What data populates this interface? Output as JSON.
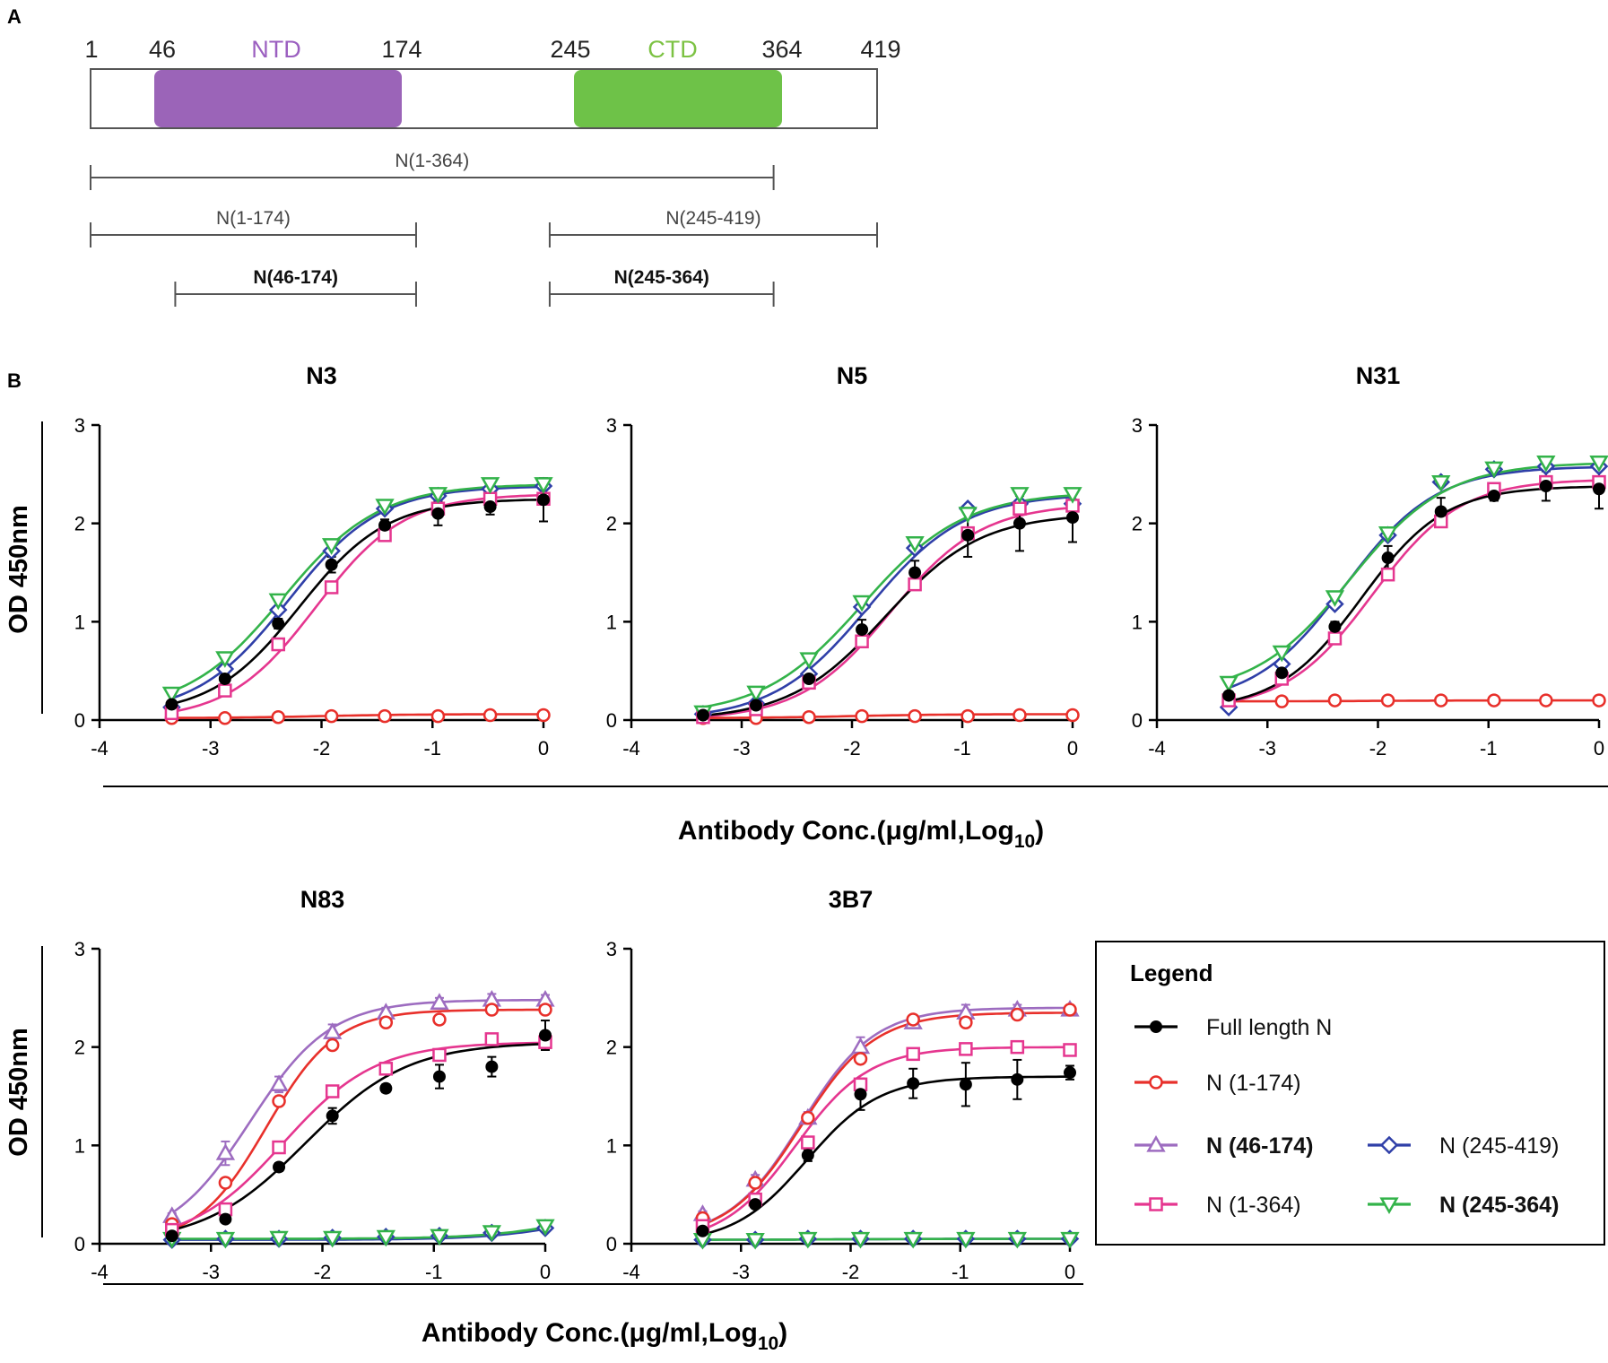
{
  "panel_labels": {
    "a": "A",
    "b": "B"
  },
  "domain_map": {
    "positions": [
      "1",
      "46",
      "174",
      "245",
      "364",
      "419"
    ],
    "ntd_label": "NTD",
    "ctd_label": "CTD",
    "colors": {
      "ntd": "#9b64b8",
      "ctd": "#6ec248",
      "ntd_text": "#9b5fc0",
      "ctd_text": "#7cc243"
    },
    "constructs": [
      {
        "label": "N(1-364)",
        "start": 1,
        "end": 364,
        "bold": false
      },
      {
        "label": "N(1-174)",
        "start": 1,
        "end": 174,
        "bold": false
      },
      {
        "label": "N(245-419)",
        "start": 245,
        "end": 419,
        "bold": false
      },
      {
        "label": "N(46-174)",
        "start": 46,
        "end": 174,
        "bold": true
      },
      {
        "label": "N(245-364)",
        "start": 245,
        "end": 364,
        "bold": true
      }
    ]
  },
  "axis_text": {
    "ylabel": "OD 450nm",
    "xlabel_main": "Antibody Conc.(μg/ml,Log",
    "xlabel_sub": "10",
    "xlabel_close": ")",
    "xticks": [
      "-4",
      "-3",
      "-2",
      "-1",
      "0"
    ],
    "yticks": [
      "0",
      "1",
      "2",
      "3"
    ]
  },
  "legend": {
    "title": "Legend",
    "entries": [
      {
        "key": "full",
        "label": "Full length N",
        "bold": false
      },
      {
        "key": "n1_174",
        "label": "N (1-174)",
        "bold": false
      },
      {
        "key": "n46_174",
        "label": "N (46-174)",
        "bold": true
      },
      {
        "key": "n245_419",
        "label": "N (245-419)",
        "bold": false
      },
      {
        "key": "n1_364",
        "label": "N (1-364)",
        "bold": false
      },
      {
        "key": "n245_364",
        "label": "N (245-364)",
        "bold": true
      }
    ]
  },
  "series_style": {
    "full": {
      "color": "#000000",
      "marker": "filled-circle"
    },
    "n1_174": {
      "color": "#e8302b",
      "marker": "open-circle"
    },
    "n46_174": {
      "color": "#9d6cc0",
      "marker": "open-triangle-up"
    },
    "n245_419": {
      "color": "#2f3fa8",
      "marker": "open-diamond"
    },
    "n1_364": {
      "color": "#e5368f",
      "marker": "open-square"
    },
    "n245_364": {
      "color": "#33b34a",
      "marker": "open-triangle-down"
    }
  },
  "chart_data": [
    {
      "type": "line",
      "title": "N3",
      "xlabel": "Antibody Conc.(μg/ml,Log10)",
      "ylabel": "OD 450nm",
      "xlim": [
        -4,
        0
      ],
      "ylim": [
        0,
        3
      ],
      "x": [
        -3.35,
        -2.87,
        -2.39,
        -1.91,
        -1.43,
        -0.95,
        -0.48,
        0
      ],
      "series": [
        {
          "key": "n1_174",
          "name": "N (1-174)",
          "values": [
            0.02,
            0.02,
            0.03,
            0.04,
            0.04,
            0.04,
            0.05,
            0.05
          ]
        },
        {
          "key": "n245_419",
          "name": "N (245-419)",
          "values": [
            0.13,
            0.52,
            1.12,
            1.72,
            2.15,
            2.28,
            2.35,
            2.38
          ]
        },
        {
          "key": "n1_364",
          "name": "N (1-364)",
          "values": [
            0.07,
            0.3,
            0.77,
            1.35,
            1.88,
            2.15,
            2.25,
            2.25
          ]
        },
        {
          "key": "n245_364",
          "name": "N (245-364)",
          "values": [
            0.27,
            0.63,
            1.22,
            1.78,
            2.18,
            2.3,
            2.4,
            2.4
          ]
        },
        {
          "key": "full",
          "name": "Full length N",
          "values": [
            0.16,
            0.42,
            0.98,
            1.58,
            1.98,
            2.1,
            2.17,
            2.24
          ]
        }
      ],
      "error": {
        "full": [
          0.03,
          0.04,
          0.05,
          0.08,
          0.06,
          0.12,
          0.08,
          0.22
        ]
      },
      "fits": {
        "full": {
          "bottom": 0.05,
          "top": 2.25,
          "ec50": -2.2,
          "slope": 1.1
        },
        "n1_364": {
          "bottom": 0.0,
          "top": 2.3,
          "ec50": -2.05,
          "slope": 1.1
        },
        "n245_419": {
          "bottom": 0.05,
          "top": 2.38,
          "ec50": -2.3,
          "slope": 1.05
        },
        "n245_364": {
          "bottom": 0.08,
          "top": 2.4,
          "ec50": -2.35,
          "slope": 1.0
        },
        "n1_174": {
          "bottom": 0.02,
          "top": 0.06,
          "ec50": -2.0,
          "slope": 1.0
        }
      }
    },
    {
      "type": "line",
      "title": "N5",
      "xlabel": "Antibody Conc.(μg/ml,Log10)",
      "ylabel": "OD 450nm",
      "xlim": [
        -4,
        0
      ],
      "ylim": [
        0,
        3
      ],
      "x": [
        -3.35,
        -2.87,
        -2.39,
        -1.91,
        -1.43,
        -0.95,
        -0.48,
        0
      ],
      "series": [
        {
          "key": "n1_174",
          "name": "N (1-174)",
          "values": [
            0.02,
            0.02,
            0.03,
            0.04,
            0.04,
            0.04,
            0.05,
            0.05
          ]
        },
        {
          "key": "n245_419",
          "name": "N (245-419)",
          "values": [
            0.06,
            0.17,
            0.47,
            1.15,
            1.75,
            2.15,
            2.2,
            2.2
          ]
        },
        {
          "key": "n1_364",
          "name": "N (1-364)",
          "values": [
            0.03,
            0.11,
            0.38,
            0.8,
            1.38,
            1.9,
            2.15,
            2.18
          ]
        },
        {
          "key": "n245_364",
          "name": "N (245-364)",
          "values": [
            0.08,
            0.28,
            0.62,
            1.2,
            1.8,
            2.1,
            2.3,
            2.3
          ]
        },
        {
          "key": "full",
          "name": "Full length N",
          "values": [
            0.05,
            0.15,
            0.42,
            0.92,
            1.5,
            1.88,
            2.0,
            2.06
          ]
        }
      ],
      "error": {
        "full": [
          0.02,
          0.03,
          0.05,
          0.1,
          0.12,
          0.22,
          0.28,
          0.25
        ]
      },
      "fits": {
        "full": {
          "bottom": 0.0,
          "top": 2.1,
          "ec50": -1.7,
          "slope": 1.0
        },
        "n1_364": {
          "bottom": 0.0,
          "top": 2.2,
          "ec50": -1.65,
          "slope": 1.05
        },
        "n245_419": {
          "bottom": 0.0,
          "top": 2.3,
          "ec50": -1.85,
          "slope": 1.0
        },
        "n245_364": {
          "bottom": 0.04,
          "top": 2.32,
          "ec50": -1.9,
          "slope": 0.95
        },
        "n1_174": {
          "bottom": 0.02,
          "top": 0.06,
          "ec50": -2.0,
          "slope": 1.0
        }
      }
    },
    {
      "type": "line",
      "title": "N31",
      "xlabel": "Antibody Conc.(μg/ml,Log10)",
      "ylabel": "OD 450nm",
      "xlim": [
        -4,
        0
      ],
      "ylim": [
        0,
        3
      ],
      "x": [
        -3.35,
        -2.87,
        -2.39,
        -1.91,
        -1.43,
        -0.95,
        -0.48,
        0
      ],
      "series": [
        {
          "key": "n1_174",
          "name": "N (1-174)",
          "values": [
            0.18,
            0.19,
            0.2,
            0.2,
            0.2,
            0.2,
            0.2,
            0.2
          ]
        },
        {
          "key": "n245_419",
          "name": "N (245-419)",
          "values": [
            0.13,
            0.57,
            1.18,
            1.88,
            2.42,
            2.55,
            2.58,
            2.58
          ]
        },
        {
          "key": "n1_364",
          "name": "N (1-364)",
          "values": [
            0.2,
            0.42,
            0.83,
            1.48,
            2.02,
            2.35,
            2.42,
            2.42
          ]
        },
        {
          "key": "n245_364",
          "name": "N (245-364)",
          "values": [
            0.38,
            0.69,
            1.25,
            1.9,
            2.42,
            2.56,
            2.62,
            2.62
          ]
        },
        {
          "key": "full",
          "name": "Full length N",
          "values": [
            0.25,
            0.48,
            0.95,
            1.65,
            2.12,
            2.28,
            2.38,
            2.35
          ]
        }
      ],
      "error": {
        "full": [
          0.03,
          0.04,
          0.05,
          0.12,
          0.14,
          0.05,
          0.15,
          0.2
        ]
      },
      "fits": {
        "full": {
          "bottom": 0.1,
          "top": 2.38,
          "ec50": -2.15,
          "slope": 1.15
        },
        "n1_364": {
          "bottom": 0.1,
          "top": 2.45,
          "ec50": -2.05,
          "slope": 1.1
        },
        "n245_419": {
          "bottom": 0.15,
          "top": 2.58,
          "ec50": -2.3,
          "slope": 1.05
        },
        "n245_364": {
          "bottom": 0.25,
          "top": 2.62,
          "ec50": -2.25,
          "slope": 1.0
        },
        "n1_174": {
          "bottom": 0.19,
          "top": 0.2,
          "ec50": -2.0,
          "slope": 1.0
        }
      }
    },
    {
      "type": "line",
      "title": "N83",
      "xlabel": "Antibody Conc.(μg/ml,Log10)",
      "ylabel": "OD 450nm",
      "xlim": [
        -4,
        0
      ],
      "ylim": [
        0,
        3
      ],
      "x": [
        -3.35,
        -2.87,
        -2.39,
        -1.91,
        -1.43,
        -0.95,
        -0.48,
        0
      ],
      "series": [
        {
          "key": "n245_419",
          "name": "N (245-419)",
          "values": [
            0.04,
            0.05,
            0.05,
            0.06,
            0.07,
            0.08,
            0.11,
            0.16
          ]
        },
        {
          "key": "n245_364",
          "name": "N (245-364)",
          "values": [
            0.05,
            0.05,
            0.06,
            0.06,
            0.07,
            0.08,
            0.12,
            0.18
          ]
        },
        {
          "key": "n46_174",
          "name": "N (46-174)",
          "values": [
            0.28,
            0.92,
            1.62,
            2.15,
            2.35,
            2.45,
            2.48,
            2.48
          ]
        },
        {
          "key": "n1_174",
          "name": "N (1-174)",
          "values": [
            0.2,
            0.62,
            1.45,
            2.02,
            2.25,
            2.28,
            2.38,
            2.38
          ]
        },
        {
          "key": "n1_364",
          "name": "N (1-364)",
          "values": [
            0.14,
            0.35,
            0.98,
            1.55,
            1.78,
            1.92,
            2.08,
            2.05
          ]
        },
        {
          "key": "full",
          "name": "Full length N",
          "values": [
            0.08,
            0.25,
            0.78,
            1.3,
            1.58,
            1.7,
            1.8,
            2.12
          ]
        }
      ],
      "error": {
        "full": [
          0.02,
          0.03,
          0.04,
          0.08,
          0.04,
          0.12,
          0.1,
          0.15
        ],
        "n46_174": [
          0.03,
          0.12,
          0.08,
          0.08,
          0.05,
          0.05,
          0.06,
          0.05
        ]
      },
      "fits": {
        "full": {
          "bottom": 0.0,
          "top": 2.05,
          "ec50": -2.15,
          "slope": 0.95
        },
        "n1_364": {
          "bottom": 0.0,
          "top": 2.05,
          "ec50": -2.35,
          "slope": 1.05
        },
        "n1_174": {
          "bottom": 0.0,
          "top": 2.38,
          "ec50": -2.5,
          "slope": 1.4
        },
        "n46_174": {
          "bottom": 0.0,
          "top": 2.48,
          "ec50": -2.65,
          "slope": 1.2
        },
        "n245_419": {
          "bottom": 0.04,
          "top": 0.5,
          "ec50": 0.5,
          "slope": 1.0
        },
        "n245_364": {
          "bottom": 0.05,
          "top": 0.5,
          "ec50": 0.45,
          "slope": 1.0
        }
      }
    },
    {
      "type": "line",
      "title": "3B7",
      "xlabel": "Antibody Conc.(μg/ml,Log10)",
      "ylabel": "OD 450nm",
      "xlim": [
        -4,
        0
      ],
      "ylim": [
        0,
        3
      ],
      "x": [
        -3.35,
        -2.87,
        -2.39,
        -1.91,
        -1.43,
        -0.95,
        -0.48,
        0
      ],
      "series": [
        {
          "key": "n245_419",
          "name": "N (245-419)",
          "values": [
            0.04,
            0.04,
            0.05,
            0.05,
            0.05,
            0.05,
            0.05,
            0.05
          ]
        },
        {
          "key": "n245_364",
          "name": "N (245-364)",
          "values": [
            0.04,
            0.04,
            0.05,
            0.05,
            0.05,
            0.05,
            0.05,
            0.05
          ]
        },
        {
          "key": "n46_174",
          "name": "N (46-174)",
          "values": [
            0.3,
            0.65,
            1.28,
            2.0,
            2.25,
            2.35,
            2.38,
            2.38
          ]
        },
        {
          "key": "n1_174",
          "name": "N (1-174)",
          "values": [
            0.26,
            0.62,
            1.28,
            1.88,
            2.28,
            2.25,
            2.33,
            2.38
          ]
        },
        {
          "key": "n1_364",
          "name": "N (1-364)",
          "values": [
            0.18,
            0.45,
            1.03,
            1.62,
            1.93,
            1.98,
            2.0,
            1.97
          ]
        },
        {
          "key": "full",
          "name": "Full length N",
          "values": [
            0.13,
            0.4,
            0.9,
            1.52,
            1.63,
            1.62,
            1.67,
            1.74
          ]
        }
      ],
      "error": {
        "full": [
          0.02,
          0.03,
          0.06,
          0.16,
          0.15,
          0.22,
          0.2,
          0.07
        ],
        "n46_174": [
          0.03,
          0.05,
          0.06,
          0.1,
          0.05,
          0.08,
          0.05,
          0.04
        ]
      },
      "fits": {
        "full": {
          "bottom": 0.0,
          "top": 1.7,
          "ec50": -2.4,
          "slope": 1.3
        },
        "n1_364": {
          "bottom": 0.0,
          "top": 2.0,
          "ec50": -2.5,
          "slope": 1.3
        },
        "n1_174": {
          "bottom": 0.05,
          "top": 2.35,
          "ec50": -2.45,
          "slope": 1.3
        },
        "n46_174": {
          "bottom": 0.05,
          "top": 2.4,
          "ec50": -2.45,
          "slope": 1.3
        },
        "n245_419": {
          "bottom": 0.04,
          "top": 0.05,
          "ec50": -2.0,
          "slope": 1.0
        },
        "n245_364": {
          "bottom": 0.04,
          "top": 0.05,
          "ec50": -2.0,
          "slope": 1.0
        }
      }
    }
  ]
}
